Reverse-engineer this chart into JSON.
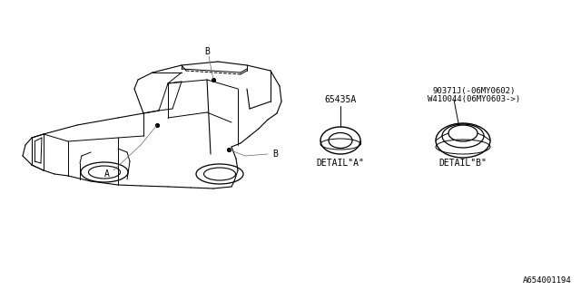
{
  "bg_color": "#ffffff",
  "line_color": "#000000",
  "text_color": "#000000",
  "part_a_label": "65435A",
  "part_b_label1": "90371J(-06MY0602)",
  "part_b_label2": "W410044(06MY0603->)",
  "detail_a": "DETAIL\"A\"",
  "detail_b": "DETAIL\"B\"",
  "footer": "A654001194",
  "label_a": "A",
  "label_b": "B",
  "fig_width": 6.4,
  "fig_height": 3.2,
  "dpi": 100
}
